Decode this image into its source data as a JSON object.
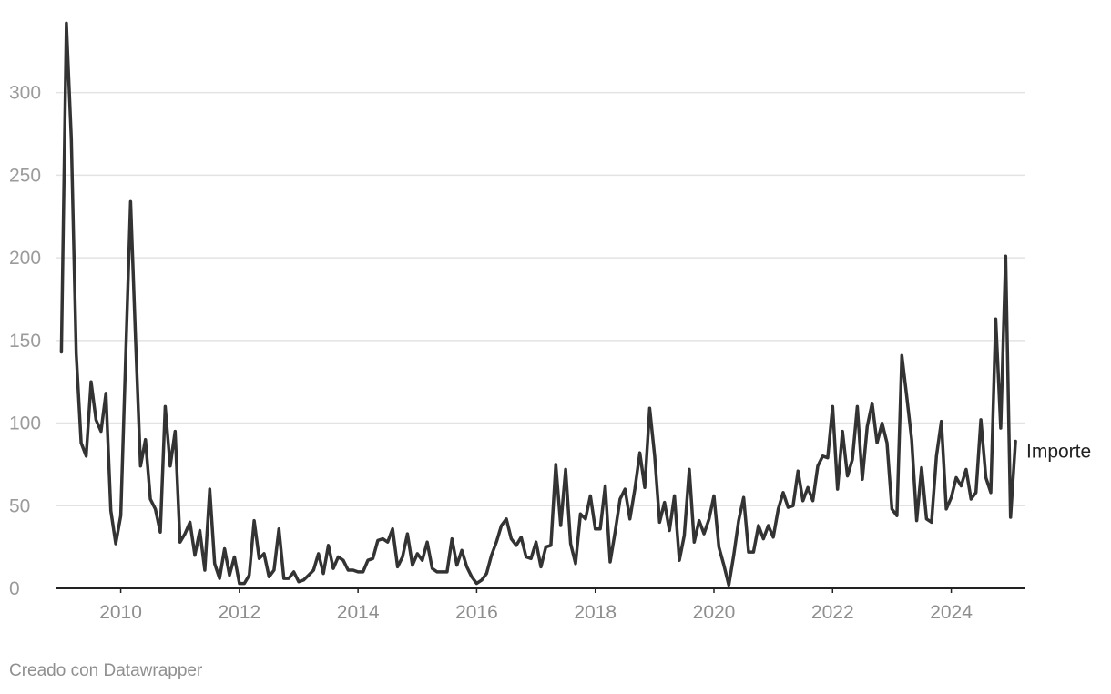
{
  "chart_data": {
    "type": "line",
    "title": "",
    "xlabel": "",
    "ylabel": "",
    "xlim": [
      "2008-12",
      "2025-04"
    ],
    "ylim": [
      0,
      345
    ],
    "y_ticks": [
      "0",
      "50",
      "100",
      "150",
      "200",
      "250",
      "300"
    ],
    "x_ticks": [
      "2010",
      "2012",
      "2014",
      "2016",
      "2018",
      "2020",
      "2022",
      "2024"
    ],
    "grid": "horizontal",
    "legend": "none",
    "colors": {
      "series": "#333333",
      "grid": "#e3e3e3",
      "axis": "#222222"
    },
    "series": [
      {
        "name": "Importe",
        "label_position": "right-end",
        "points": [
          [
            "2009-01",
            143
          ],
          [
            "2009-02",
            342
          ],
          [
            "2009-03",
            272
          ],
          [
            "2009-04",
            142
          ],
          [
            "2009-05",
            88
          ],
          [
            "2009-06",
            80
          ],
          [
            "2009-07",
            125
          ],
          [
            "2009-08",
            102
          ],
          [
            "2009-09",
            95
          ],
          [
            "2009-10",
            118
          ],
          [
            "2009-11",
            47
          ],
          [
            "2009-12",
            27
          ],
          [
            "2010-01",
            44
          ],
          [
            "2010-02",
            140
          ],
          [
            "2010-03",
            234
          ],
          [
            "2010-04",
            150
          ],
          [
            "2010-05",
            74
          ],
          [
            "2010-06",
            90
          ],
          [
            "2010-07",
            54
          ],
          [
            "2010-08",
            48
          ],
          [
            "2010-09",
            34
          ],
          [
            "2010-10",
            110
          ],
          [
            "2010-11",
            74
          ],
          [
            "2010-12",
            95
          ],
          [
            "2011-01",
            28
          ],
          [
            "2011-02",
            33
          ],
          [
            "2011-03",
            40
          ],
          [
            "2011-04",
            20
          ],
          [
            "2011-05",
            35
          ],
          [
            "2011-06",
            11
          ],
          [
            "2011-07",
            60
          ],
          [
            "2011-08",
            15
          ],
          [
            "2011-09",
            6
          ],
          [
            "2011-10",
            24
          ],
          [
            "2011-11",
            8
          ],
          [
            "2011-12",
            19
          ],
          [
            "2012-01",
            3
          ],
          [
            "2012-02",
            3
          ],
          [
            "2012-03",
            8
          ],
          [
            "2012-04",
            41
          ],
          [
            "2012-05",
            18
          ],
          [
            "2012-06",
            21
          ],
          [
            "2012-07",
            7
          ],
          [
            "2012-08",
            11
          ],
          [
            "2012-09",
            36
          ],
          [
            "2012-10",
            6
          ],
          [
            "2012-11",
            6
          ],
          [
            "2012-12",
            10
          ],
          [
            "2013-01",
            4
          ],
          [
            "2013-02",
            5
          ],
          [
            "2013-03",
            8
          ],
          [
            "2013-04",
            11
          ],
          [
            "2013-05",
            21
          ],
          [
            "2013-06",
            9
          ],
          [
            "2013-07",
            26
          ],
          [
            "2013-08",
            12
          ],
          [
            "2013-09",
            19
          ],
          [
            "2013-10",
            17
          ],
          [
            "2013-11",
            11
          ],
          [
            "2013-12",
            11
          ],
          [
            "2014-01",
            10
          ],
          [
            "2014-02",
            10
          ],
          [
            "2014-03",
            17
          ],
          [
            "2014-04",
            18
          ],
          [
            "2014-05",
            29
          ],
          [
            "2014-06",
            30
          ],
          [
            "2014-07",
            28
          ],
          [
            "2014-08",
            36
          ],
          [
            "2014-09",
            13
          ],
          [
            "2014-10",
            19
          ],
          [
            "2014-11",
            33
          ],
          [
            "2014-12",
            14
          ],
          [
            "2015-01",
            21
          ],
          [
            "2015-02",
            17
          ],
          [
            "2015-03",
            28
          ],
          [
            "2015-04",
            12
          ],
          [
            "2015-05",
            10
          ],
          [
            "2015-06",
            10
          ],
          [
            "2015-07",
            10
          ],
          [
            "2015-08",
            30
          ],
          [
            "2015-09",
            14
          ],
          [
            "2015-10",
            23
          ],
          [
            "2015-11",
            13
          ],
          [
            "2015-12",
            7
          ],
          [
            "2016-01",
            3
          ],
          [
            "2016-02",
            5
          ],
          [
            "2016-03",
            9
          ],
          [
            "2016-04",
            20
          ],
          [
            "2016-05",
            28
          ],
          [
            "2016-06",
            38
          ],
          [
            "2016-07",
            42
          ],
          [
            "2016-08",
            30
          ],
          [
            "2016-09",
            26
          ],
          [
            "2016-10",
            31
          ],
          [
            "2016-11",
            19
          ],
          [
            "2016-12",
            18
          ],
          [
            "2017-01",
            28
          ],
          [
            "2017-02",
            13
          ],
          [
            "2017-03",
            25
          ],
          [
            "2017-04",
            26
          ],
          [
            "2017-05",
            75
          ],
          [
            "2017-06",
            38
          ],
          [
            "2017-07",
            72
          ],
          [
            "2017-08",
            27
          ],
          [
            "2017-09",
            15
          ],
          [
            "2017-10",
            45
          ],
          [
            "2017-11",
            42
          ],
          [
            "2017-12",
            56
          ],
          [
            "2018-01",
            36
          ],
          [
            "2018-02",
            36
          ],
          [
            "2018-03",
            62
          ],
          [
            "2018-04",
            16
          ],
          [
            "2018-05",
            34
          ],
          [
            "2018-06",
            54
          ],
          [
            "2018-07",
            60
          ],
          [
            "2018-08",
            42
          ],
          [
            "2018-09",
            60
          ],
          [
            "2018-10",
            82
          ],
          [
            "2018-11",
            61
          ],
          [
            "2018-12",
            109
          ],
          [
            "2019-01",
            80
          ],
          [
            "2019-02",
            40
          ],
          [
            "2019-03",
            52
          ],
          [
            "2019-04",
            35
          ],
          [
            "2019-05",
            56
          ],
          [
            "2019-06",
            17
          ],
          [
            "2019-07",
            32
          ],
          [
            "2019-08",
            72
          ],
          [
            "2019-09",
            28
          ],
          [
            "2019-10",
            41
          ],
          [
            "2019-11",
            33
          ],
          [
            "2019-12",
            42
          ],
          [
            "2020-01",
            56
          ],
          [
            "2020-02",
            25
          ],
          [
            "2020-03",
            14
          ],
          [
            "2020-04",
            2
          ],
          [
            "2020-05",
            20
          ],
          [
            "2020-06",
            41
          ],
          [
            "2020-07",
            55
          ],
          [
            "2020-08",
            22
          ],
          [
            "2020-09",
            22
          ],
          [
            "2020-10",
            38
          ],
          [
            "2020-11",
            30
          ],
          [
            "2020-12",
            38
          ],
          [
            "2021-01",
            31
          ],
          [
            "2021-02",
            48
          ],
          [
            "2021-03",
            58
          ],
          [
            "2021-04",
            49
          ],
          [
            "2021-05",
            50
          ],
          [
            "2021-06",
            71
          ],
          [
            "2021-07",
            53
          ],
          [
            "2021-08",
            61
          ],
          [
            "2021-09",
            53
          ],
          [
            "2021-10",
            74
          ],
          [
            "2021-11",
            80
          ],
          [
            "2021-12",
            79
          ],
          [
            "2022-01",
            110
          ],
          [
            "2022-02",
            60
          ],
          [
            "2022-03",
            95
          ],
          [
            "2022-04",
            68
          ],
          [
            "2022-05",
            78
          ],
          [
            "2022-06",
            110
          ],
          [
            "2022-07",
            66
          ],
          [
            "2022-08",
            98
          ],
          [
            "2022-09",
            112
          ],
          [
            "2022-10",
            88
          ],
          [
            "2022-11",
            100
          ],
          [
            "2022-12",
            88
          ],
          [
            "2023-01",
            48
          ],
          [
            "2023-02",
            44
          ],
          [
            "2023-03",
            141
          ],
          [
            "2023-04",
            116
          ],
          [
            "2023-05",
            90
          ],
          [
            "2023-06",
            41
          ],
          [
            "2023-07",
            73
          ],
          [
            "2023-08",
            42
          ],
          [
            "2023-09",
            40
          ],
          [
            "2023-10",
            80
          ],
          [
            "2023-11",
            101
          ],
          [
            "2023-12",
            48
          ],
          [
            "2024-01",
            55
          ],
          [
            "2024-02",
            67
          ],
          [
            "2024-03",
            62
          ],
          [
            "2024-04",
            72
          ],
          [
            "2024-05",
            54
          ],
          [
            "2024-06",
            58
          ],
          [
            "2024-07",
            102
          ],
          [
            "2024-08",
            67
          ],
          [
            "2024-09",
            58
          ],
          [
            "2024-10",
            163
          ],
          [
            "2024-11",
            97
          ],
          [
            "2024-12",
            201
          ],
          [
            "2025-01",
            43
          ],
          [
            "2025-02",
            89
          ]
        ]
      }
    ]
  },
  "footer": {
    "credit": "Creado con Datawrapper"
  }
}
